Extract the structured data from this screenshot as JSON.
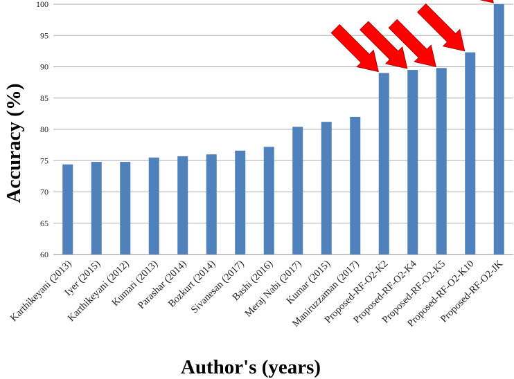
{
  "chart_data": {
    "type": "bar",
    "title": "",
    "xlabel": "Author's (years)",
    "ylabel": "Accuracy (%)",
    "ylim": [
      60,
      100
    ],
    "yticks": [
      60,
      65,
      70,
      75,
      80,
      85,
      90,
      95,
      100
    ],
    "grid": true,
    "legend": "none",
    "bar_color": "#4f81bd",
    "arrow_color": "#ff0000",
    "arrow_icon": "red-arrow-icon",
    "highlighted_categories": [
      "Proposed-RF-O2-K2",
      "Proposed-RF-O2-K4",
      "Proposed-RF-O2-K5",
      "Proposed-RF-O2-K10",
      "Proposed-RF-O2-JK"
    ],
    "categories": [
      "Karthikeyani (2013)",
      "Iyer (2015)",
      "Karthikeyani (2012)",
      "Kumari (2013)",
      "Parashar (2014)",
      "Bozkurt (2014)",
      "Sivanesan (2017)",
      "Bashi (2016)",
      "Meraj Nabi  (2017)",
      "Kumar (2015)",
      "Maniruzzaman (2017)",
      "Proposed-RF-O2-K2",
      "Proposed-RF-O2-K4",
      "Proposed-RF-O2-K5",
      "Proposed-RF-O2-K10",
      "Proposed-RF-O2-JK"
    ],
    "values": [
      74.4,
      74.8,
      74.8,
      75.5,
      75.7,
      76.0,
      76.6,
      77.2,
      80.4,
      81.2,
      82.0,
      89.0,
      89.5,
      89.8,
      92.3,
      100.0
    ]
  }
}
